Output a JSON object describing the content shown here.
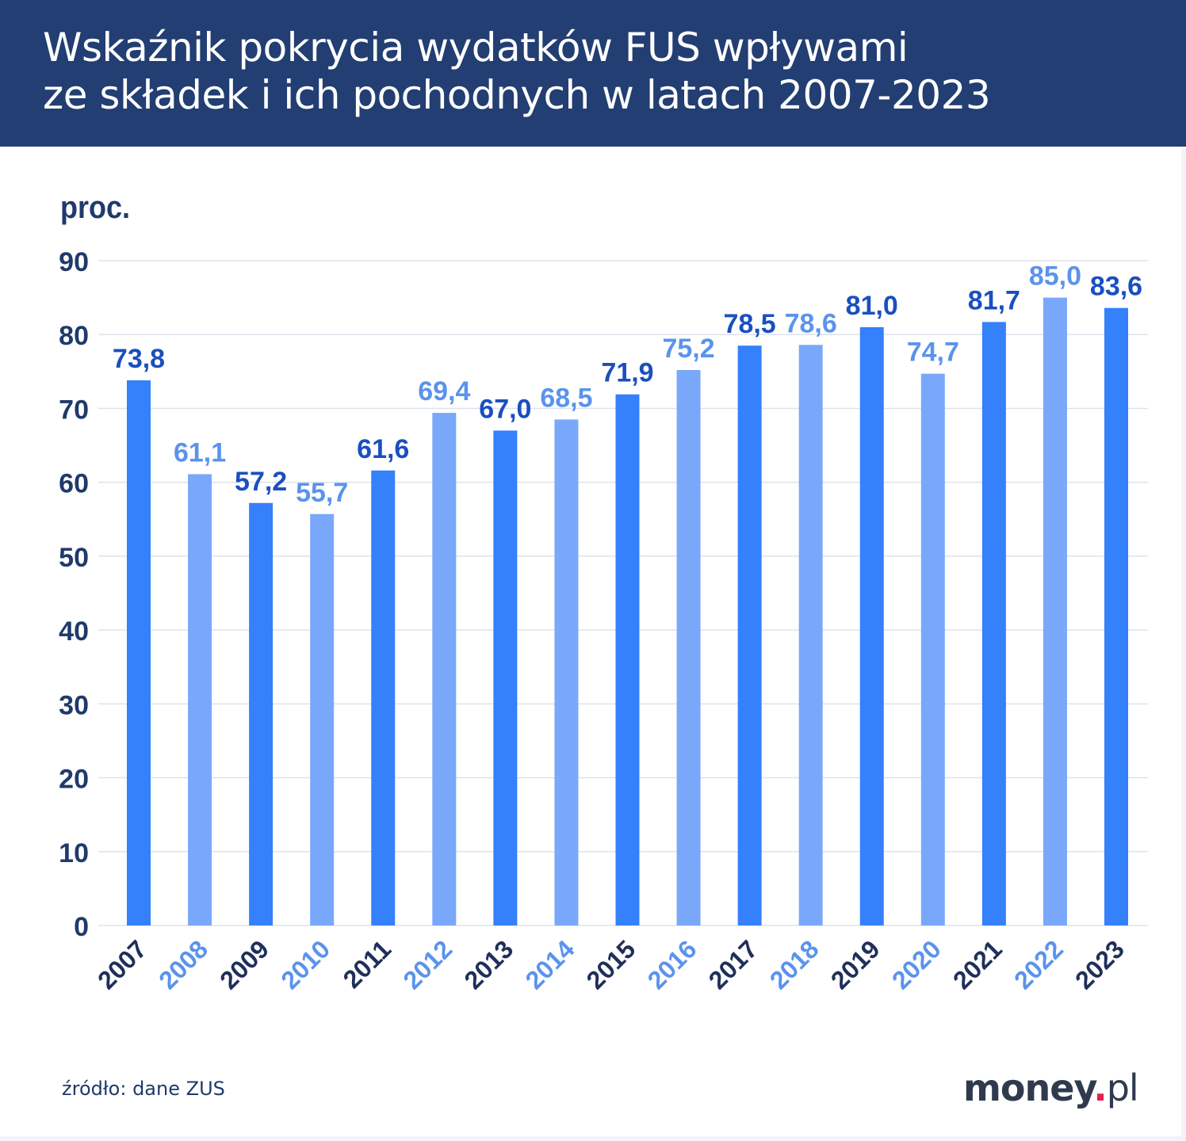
{
  "header": {
    "title_line1": "Wskaźnik pokrycia wydatków FUS wpływami",
    "title_line2": "ze składek i ich pochodnych w latach 2007-2023"
  },
  "footer": {
    "source": "źródło: dane ZUS",
    "logo": "money.pl"
  },
  "chart_data": {
    "type": "bar",
    "title": "Wskaźnik pokrycia wydatków FUS wpływami ze składek i ich pochodnych w latach 2007-2023",
    "ylabel": "proc.",
    "xlabel": "",
    "ylim": [
      0,
      90
    ],
    "yticks": [
      0,
      10,
      20,
      30,
      40,
      50,
      60,
      70,
      80,
      90
    ],
    "grid": true,
    "categories": [
      "2007",
      "2008",
      "2009",
      "2010",
      "2011",
      "2012",
      "2013",
      "2014",
      "2015",
      "2016",
      "2017",
      "2018",
      "2019",
      "2020",
      "2021",
      "2022",
      "2023"
    ],
    "values": [
      73.8,
      61.1,
      57.2,
      55.7,
      61.6,
      69.4,
      67.0,
      68.5,
      71.9,
      75.2,
      78.5,
      78.6,
      81.0,
      74.7,
      81.7,
      85.0,
      83.6
    ],
    "data_labels": [
      "73,8",
      "61,1",
      "57,2",
      "55,7",
      "61,6",
      "69,4",
      "67,0",
      "68,5",
      "71,9",
      "75,2",
      "78,5",
      "78,6",
      "81,0",
      "74,7",
      "81,7",
      "85,0",
      "83,6"
    ],
    "colors": {
      "bar_dark": "#3580fb",
      "bar_light": "#79a8fb",
      "label_dark": "#1a4fbf",
      "label_light": "#5b93ec",
      "year_dark": "#1f2f5a",
      "year_light": "#5b93ec",
      "axis_text": "#1f3a6b",
      "grid": "#dde3ec"
    }
  }
}
